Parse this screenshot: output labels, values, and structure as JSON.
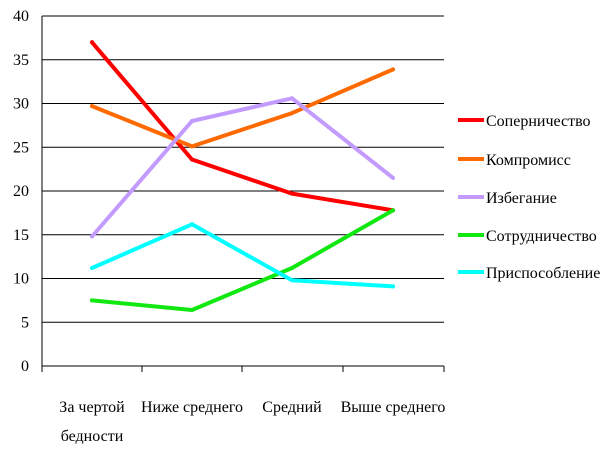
{
  "chart_data": {
    "type": "line",
    "title": "",
    "xlabel": "",
    "ylabel": "",
    "ylim": [
      0,
      40
    ],
    "yticks": [
      0,
      5,
      10,
      15,
      20,
      25,
      30,
      35,
      40
    ],
    "grid": true,
    "legend_position": "right",
    "categories": [
      [
        "За чертой",
        "бедности"
      ],
      [
        "Ниже среднего"
      ],
      [
        "Средний"
      ],
      [
        "Выше среднего"
      ]
    ],
    "series": [
      {
        "name": "Соперничество",
        "color": "#ff0000",
        "values": [
          37.0,
          23.6,
          19.7,
          17.8
        ]
      },
      {
        "name": "Компромисс",
        "color": "#ff6a00",
        "values": [
          29.7,
          25.1,
          28.9,
          33.9
        ]
      },
      {
        "name": "Избегание",
        "color": "#c39bff",
        "values": [
          14.8,
          28.0,
          30.6,
          21.5
        ]
      },
      {
        "name": "Сотрудничество",
        "color": "#11e811",
        "values": [
          7.5,
          6.4,
          11.2,
          17.8
        ]
      },
      {
        "name": "Приспособление",
        "color": "#00ffff",
        "values": [
          11.2,
          16.2,
          9.8,
          9.1
        ]
      }
    ]
  }
}
